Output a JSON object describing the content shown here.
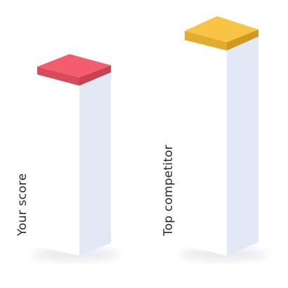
{
  "bars": [
    {
      "label": "Your score",
      "top_color": "#f45d6e",
      "top_edge_color": "#d94a5a",
      "front_color": "#ffffff",
      "side_color": "#e3e8f5",
      "level": 0.7
    },
    {
      "label": "Top competitor",
      "top_color": "#f9c445",
      "top_edge_color": "#e2ac2d",
      "front_color": "#ffffff",
      "side_color": "#e3e8f5",
      "level": 0.96
    }
  ]
}
